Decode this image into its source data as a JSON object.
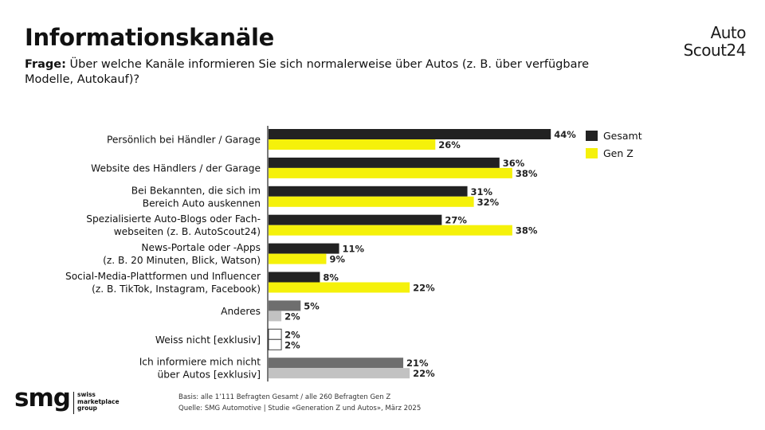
{
  "title": "Informationskanäle",
  "question": {
    "label": "Frage:",
    "text": "Über welche Kanäle informieren Sie sich normalerweise über Autos (z. B. über verfügbare Modelle, Autokauf)?"
  },
  "brand": {
    "line1": "Auto",
    "line2": "Scout24"
  },
  "footer": {
    "basis": "Basis: alle 1’111 Befragten Gesamt / alle 260 Befragten Gen Z",
    "source": "Quelle: SMG Automotive | Studie «Generation Z und Autos», März 2025"
  },
  "logo": {
    "word": "smg",
    "sub": [
      "swiss",
      "marketplace",
      "group"
    ]
  },
  "colors": {
    "gesamt": "#222222",
    "genz": "#f5f10a",
    "other_dark": "#6e6e6e",
    "other_light": "#c2c2c2",
    "outline": "#444444"
  },
  "chart_data": {
    "type": "bar",
    "orientation": "horizontal",
    "legend_position": "top-right",
    "categories": [
      [
        "Persönlich bei Händler / Garage"
      ],
      [
        "Website des Händlers / der Garage"
      ],
      [
        "Bei Bekannten, die sich im",
        "Bereich Auto auskennen"
      ],
      [
        "Spezialisierte Auto-Blogs oder Fach-",
        "webseiten (z. B. AutoScout24)"
      ],
      [
        "News-Portale oder -Apps",
        "(z. B. 20 Minuten, Blick, Watson)"
      ],
      [
        "Social-Media-Plattformen und Influencer",
        "(z. B. TikTok, Instagram, Facebook)"
      ],
      [
        "Anderes"
      ],
      [
        "Weiss nicht [exklusiv]"
      ],
      [
        "Ich informiere mich nicht",
        "über Autos [exklusiv]"
      ]
    ],
    "series": [
      {
        "name": "Gesamt",
        "values": [
          44,
          36,
          31,
          27,
          11,
          8,
          5,
          2,
          21
        ]
      },
      {
        "name": "Gen Z",
        "values": [
          26,
          38,
          32,
          38,
          9,
          22,
          2,
          2,
          22
        ]
      }
    ],
    "value_suffix": "%",
    "xlim": [
      0,
      50
    ]
  }
}
